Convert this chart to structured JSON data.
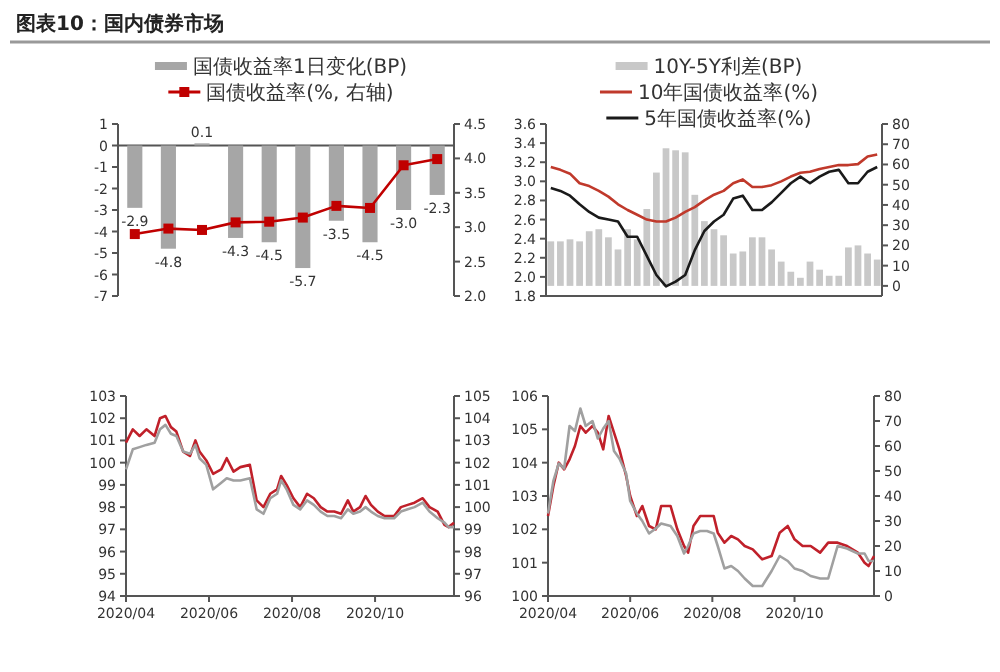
{
  "chart_data": [
    {
      "type": "bar",
      "title": "图表10：国内债券市场",
      "categories": [
        null,
        null,
        null,
        null,
        null,
        null,
        null,
        null,
        null,
        null
      ],
      "legend": "top",
      "ylim": [
        -7,
        1
      ],
      "yticks": [
        -7,
        -6,
        -5,
        -4,
        -3,
        -2,
        -1,
        0,
        1
      ],
      "y2lim": [
        2,
        4.5
      ],
      "y2ticks": [
        {
          "value": 2,
          "label": "2.0"
        },
        2.5,
        {
          "value": 3,
          "label": "3.0"
        },
        3.5,
        {
          "value": 4,
          "label": "4.0"
        },
        4.5
      ],
      "series": [
        {
          "name": "国债收益率1日变化(BP)",
          "color": "#a6a6a6",
          "values": [
            -2.9,
            -4.8,
            0.1,
            -4.3,
            -4.5,
            -5.7,
            -3.5,
            -4.5,
            -3.0,
            -2.3
          ],
          "value_labels": [
            "-2.9",
            "-4.8",
            "0.1",
            "-4.3",
            "-4.5",
            "-5.7",
            "-3.5",
            "-4.5",
            "-3.0",
            "-2.3"
          ]
        },
        {
          "name": "国债收益率(%, 右轴)",
          "type": "line",
          "axis": "y2",
          "marker": "square",
          "color": "#c00000",
          "values": [
            2.9,
            2.98,
            2.96,
            3.07,
            3.08,
            3.14,
            3.31,
            3.28,
            3.9,
            3.99
          ]
        }
      ]
    },
    {
      "type": "line",
      "categories": [
        null,
        null,
        null,
        null,
        null,
        null,
        null,
        null,
        null,
        null,
        null,
        null,
        null,
        null,
        null,
        null,
        null,
        null,
        null,
        null,
        null,
        null,
        null,
        null,
        null,
        null,
        null,
        null,
        null,
        null,
        null,
        null,
        null,
        null,
        null
      ],
      "legend": "top",
      "ylim": [
        1.8,
        3.6
      ],
      "yticks": [
        1.8,
        {
          "value": 2,
          "label": "2.0"
        },
        2.2,
        2.4,
        2.6,
        2.8,
        {
          "value": 3,
          "label": "3.0"
        },
        3.2,
        3.4,
        3.6
      ],
      "y2lim": [
        -5,
        80
      ],
      "y2ticks": [
        0,
        10,
        20,
        30,
        40,
        50,
        60,
        70,
        80
      ],
      "series": [
        {
          "name": "10Y-5Y利差(BP)",
          "type": "bar",
          "axis": "y2",
          "color": "#c8c8c8",
          "values": [
            22,
            22,
            23,
            22,
            27,
            28,
            24,
            18,
            28,
            23,
            38,
            56,
            68,
            67,
            66,
            45,
            32,
            28,
            25,
            16,
            17,
            24,
            24,
            18,
            12,
            7,
            4,
            12,
            8,
            5,
            5,
            19,
            20,
            16,
            13
          ]
        },
        {
          "name": "10年国债收益率(%)",
          "color": "#c0392b",
          "values": [
            3.15,
            3.12,
            3.08,
            2.98,
            2.95,
            2.9,
            2.84,
            2.76,
            2.7,
            2.65,
            2.6,
            2.58,
            2.58,
            2.62,
            2.68,
            2.73,
            2.8,
            2.86,
            2.9,
            2.98,
            3.02,
            2.94,
            2.94,
            2.96,
            3.0,
            3.05,
            3.09,
            3.1,
            3.13,
            3.15,
            3.17,
            3.17,
            3.18,
            3.26,
            3.28
          ]
        },
        {
          "name": "5年国债收益率(%)",
          "color": "#1a1a1a",
          "values": [
            2.93,
            2.9,
            2.85,
            2.76,
            2.68,
            2.62,
            2.6,
            2.58,
            2.42,
            2.42,
            2.22,
            2.02,
            1.9,
            1.95,
            2.02,
            2.28,
            2.48,
            2.58,
            2.65,
            2.82,
            2.85,
            2.7,
            2.7,
            2.78,
            2.88,
            2.98,
            3.05,
            2.98,
            3.05,
            3.1,
            3.12,
            2.98,
            2.98,
            3.1,
            3.15
          ]
        }
      ]
    },
    {
      "type": "line",
      "x": [
        "2020-04-01",
        "2020-04-06",
        "2020-04-11",
        "2020-04-16",
        "2020-04-22",
        "2020-04-26",
        "2020-04-30",
        "2020-05-04",
        "2020-05-08",
        "2020-05-13",
        "2020-05-18",
        "2020-05-22",
        "2020-05-25",
        "2020-05-30",
        "2020-06-04",
        "2020-06-10",
        "2020-06-14",
        "2020-06-19",
        "2020-06-24",
        "2020-07-01",
        "2020-07-06",
        "2020-07-11",
        "2020-07-16",
        "2020-07-21",
        "2020-07-24",
        "2020-07-28",
        "2020-08-02",
        "2020-08-07",
        "2020-08-12",
        "2020-08-17",
        "2020-08-22",
        "2020-08-27",
        "2020-09-01",
        "2020-09-06",
        "2020-09-11",
        "2020-09-15",
        "2020-09-20",
        "2020-09-24",
        "2020-09-28",
        "2020-10-03",
        "2020-10-08",
        "2020-10-15",
        "2020-10-20",
        "2020-10-25",
        "2020-10-30",
        "2020-11-05",
        "2020-11-10",
        "2020-11-16",
        "2020-11-21",
        "2020-11-24",
        "2020-11-28"
      ],
      "xlim": [
        "2020-04-01",
        "2020-11-28"
      ],
      "xticks": [
        {
          "value": "2020-04-01",
          "label": "2020/04"
        },
        {
          "value": "2020-06-01",
          "label": "2020/06"
        },
        {
          "value": "2020-08-01",
          "label": "2020/08"
        },
        {
          "value": "2020-10-01",
          "label": "2020/10"
        }
      ],
      "ylim": [
        94,
        103
      ],
      "yticks": [
        94,
        95,
        96,
        97,
        98,
        99,
        100,
        101,
        102,
        103
      ],
      "y2lim": [
        96,
        105
      ],
      "y2ticks": [
        96,
        97,
        98,
        99,
        100,
        101,
        102,
        103,
        104,
        105
      ],
      "series": [
        {
          "color": "#c0202a",
          "values": [
            100.9,
            101.5,
            101.2,
            101.5,
            101.2,
            102.0,
            102.1,
            101.6,
            101.4,
            100.5,
            100.3,
            101.0,
            100.5,
            100.1,
            99.5,
            99.7,
            100.2,
            99.6,
            99.8,
            99.9,
            98.3,
            98.0,
            98.6,
            98.8,
            99.4,
            99.0,
            98.4,
            98.0,
            98.6,
            98.4,
            98.0,
            97.8,
            97.8,
            97.7,
            98.3,
            97.8,
            98.0,
            98.5,
            98.1,
            97.8,
            97.6,
            97.6,
            98.0,
            98.1,
            98.2,
            98.4,
            98.0,
            97.8,
            97.2,
            97.1,
            97.3
          ]
        },
        {
          "color": "#a0a0a0",
          "axis": "y2",
          "values": [
            101.7,
            102.6,
            102.7,
            102.8,
            102.9,
            103.5,
            103.7,
            103.3,
            103.2,
            102.5,
            102.4,
            102.8,
            102.2,
            101.9,
            100.8,
            101.1,
            101.3,
            101.2,
            101.2,
            101.3,
            99.9,
            99.7,
            100.4,
            100.6,
            101.2,
            100.8,
            100.1,
            99.9,
            100.3,
            100.1,
            99.8,
            99.6,
            99.6,
            99.5,
            99.9,
            99.7,
            99.8,
            100.0,
            99.8,
            99.6,
            99.5,
            99.5,
            99.8,
            99.9,
            100.0,
            100.2,
            99.8,
            99.5,
            99.3,
            99.1,
            99.1
          ]
        }
      ]
    },
    {
      "type": "line",
      "x": [
        "2020-04-01",
        "2020-04-05",
        "2020-04-09",
        "2020-04-13",
        "2020-04-17",
        "2020-04-21",
        "2020-04-25",
        "2020-04-29",
        "2020-05-04",
        "2020-05-08",
        "2020-05-12",
        "2020-05-16",
        "2020-05-20",
        "2020-05-24",
        "2020-05-29",
        "2020-06-01",
        "2020-06-06",
        "2020-06-10",
        "2020-06-15",
        "2020-06-20",
        "2020-06-24",
        "2020-07-01",
        "2020-07-06",
        "2020-07-11",
        "2020-07-14",
        "2020-07-18",
        "2020-07-23",
        "2020-07-28",
        "2020-08-02",
        "2020-08-05",
        "2020-08-10",
        "2020-08-15",
        "2020-08-20",
        "2020-08-25",
        "2020-08-31",
        "2020-09-07",
        "2020-09-14",
        "2020-09-20",
        "2020-09-26",
        "2020-10-01",
        "2020-10-07",
        "2020-10-13",
        "2020-10-20",
        "2020-10-26",
        "2020-11-02",
        "2020-11-09",
        "2020-11-17",
        "2020-11-22",
        "2020-11-25",
        "2020-11-29"
      ],
      "xlim": [
        "2020-04-01",
        "2020-11-29"
      ],
      "xticks": [
        {
          "value": "2020-04-01",
          "label": "2020/04"
        },
        {
          "value": "2020-06-01",
          "label": "2020/06"
        },
        {
          "value": "2020-08-01",
          "label": "2020/08"
        },
        {
          "value": "2020-10-01",
          "label": "2020/10"
        }
      ],
      "ylim": [
        100,
        106
      ],
      "yticks": [
        100,
        101,
        102,
        103,
        104,
        105,
        106
      ],
      "y2lim": [
        0,
        80
      ],
      "y2ticks": [
        0,
        10,
        20,
        30,
        40,
        50,
        60,
        70,
        80
      ],
      "series": [
        {
          "color": "#c0202a",
          "values": [
            102.4,
            103.3,
            104.0,
            103.8,
            104.1,
            104.5,
            105.1,
            104.9,
            105.1,
            104.9,
            104.4,
            105.4,
            104.9,
            104.4,
            103.6,
            103.0,
            102.4,
            102.7,
            102.1,
            102.0,
            102.7,
            102.7,
            102.0,
            101.5,
            101.3,
            102.1,
            102.4,
            102.4,
            102.4,
            101.9,
            101.6,
            101.8,
            101.7,
            101.5,
            101.4,
            101.1,
            101.2,
            101.9,
            102.1,
            101.7,
            101.5,
            101.5,
            101.3,
            101.6,
            101.6,
            101.5,
            101.3,
            101.0,
            100.9,
            101.2
          ]
        },
        {
          "color": "#a0a0a0",
          "axis": "y2",
          "values": [
            33,
            46,
            53,
            51,
            68,
            66,
            75,
            68,
            70,
            63,
            67,
            70,
            58,
            55,
            49,
            38,
            33,
            30,
            25,
            27,
            29,
            28,
            24,
            17,
            20,
            25,
            26,
            26,
            25,
            20,
            11,
            12,
            10,
            7,
            4,
            4,
            10,
            16,
            14,
            11,
            10,
            8,
            7,
            7,
            20,
            19,
            17,
            17,
            14,
            14
          ]
        }
      ]
    }
  ]
}
